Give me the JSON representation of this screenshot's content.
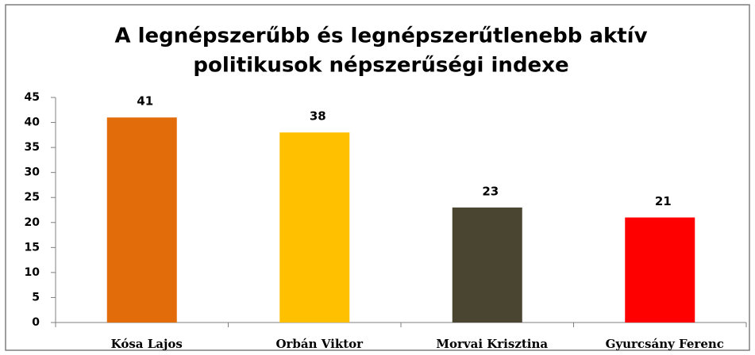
{
  "chart_data": {
    "type": "bar",
    "title": [
      "A legnépszerűbb és legnépszerűtlenebb aktív",
      "politikusok népszerűségi indexe"
    ],
    "categories": [
      "Kósa Lajos",
      "Orbán Viktor",
      "Morvai Krisztina",
      "Gyurcsány Ferenc"
    ],
    "values": [
      41,
      38,
      23,
      21
    ],
    "colors": [
      "#e36c0a",
      "#ffc000",
      "#4a4530",
      "#ff0000"
    ],
    "ylim": [
      0,
      45
    ],
    "yticks": [
      0,
      5,
      10,
      15,
      20,
      25,
      30,
      35,
      40,
      45
    ],
    "grid": false
  }
}
